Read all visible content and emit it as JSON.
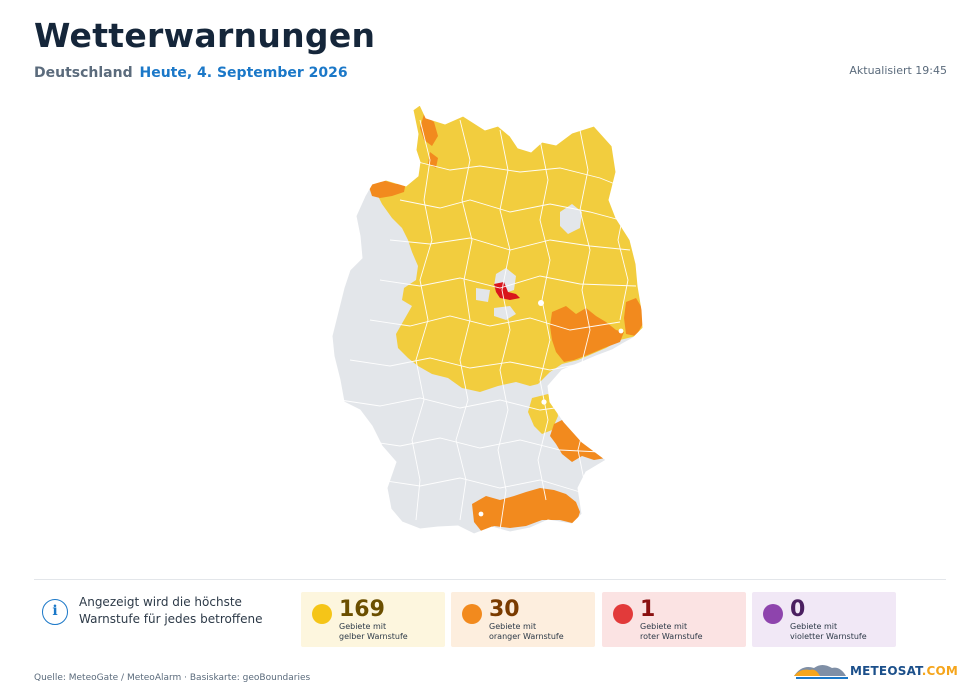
{
  "header": {
    "title": "Wetterwarnungen",
    "country": "Deutschland",
    "date": "Heute, 4. September 2026",
    "updated": "Aktualisiert 19:45"
  },
  "map": {
    "icon": "germany-warning-map",
    "colors": {
      "none": "#e3e6ea",
      "yellow": "#f2cd3e",
      "orange": "#f28a1e",
      "red": "#d9161c",
      "border": "#ffffff"
    }
  },
  "info": {
    "icon": "info-icon",
    "text": "Angezeigt wird die höchste Warnstufe für jedes betroffene Gebiet."
  },
  "stats": [
    {
      "level": "yellow",
      "count": "169",
      "label_line1": "Gebiete mit",
      "label_line2": "gelber Warnstufe",
      "color": "#f5c518"
    },
    {
      "level": "orange",
      "count": "30",
      "label_line1": "Gebiete mit",
      "label_line2": "oranger Warnstufe",
      "color": "#f28a1e"
    },
    {
      "level": "red",
      "count": "1",
      "label_line1": "Gebiete mit",
      "label_line2": "roter Warnstufe",
      "color": "#e23a3a"
    },
    {
      "level": "violet",
      "count": "0",
      "label_line1": "Gebiete mit",
      "label_line2": "violetter Warnstufe",
      "color": "#8e44ad"
    }
  ],
  "footer": {
    "source": "Quelle: MeteoGate / MeteoAlarm · Basiskarte: geoBoundaries",
    "logo_main": "METEO",
    "logo_accent": "SAT",
    "logo_suffix": ".COM"
  }
}
